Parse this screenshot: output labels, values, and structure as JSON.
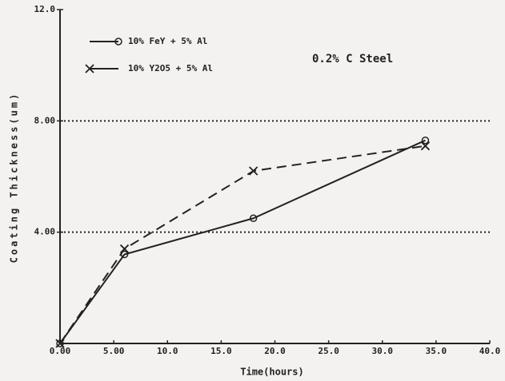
{
  "chart_data": {
    "type": "line",
    "annotation": "0.2% C Steel",
    "x_label": "Time(hours)",
    "y_label": "Coating Thickness(um)",
    "xlim": [
      0,
      40
    ],
    "xticks": [
      {
        "value": 0,
        "label": "0.00"
      },
      {
        "value": 5,
        "label": "5.00"
      },
      {
        "value": 10,
        "label": "10.0"
      },
      {
        "value": 15,
        "label": "15.0"
      },
      {
        "value": 20,
        "label": "20.0"
      },
      {
        "value": 25,
        "label": "25.0"
      },
      {
        "value": 30,
        "label": "30.0"
      },
      {
        "value": 35,
        "label": "35.0"
      },
      {
        "value": 40,
        "label": "40.0"
      }
    ],
    "ylim": [
      0,
      12
    ],
    "yticks": [
      {
        "value": 4,
        "label": "4.00"
      },
      {
        "value": 8,
        "label": "8.00"
      },
      {
        "value": 12,
        "label": "12.0"
      }
    ],
    "grid": true,
    "legend": "upper left",
    "series": [
      {
        "name": "10% FeY + 5% Al",
        "color": "#222222",
        "line_style": "solid",
        "marker": "circle",
        "x": [
          0,
          6,
          18,
          34
        ],
        "values": [
          0,
          3.2,
          4.5,
          7.3
        ]
      },
      {
        "name": "10% Y2O5 + 5% Al",
        "color": "#222222",
        "line_style": "dashed",
        "marker": "x",
        "x": [
          0,
          6,
          18,
          34
        ],
        "values": [
          0,
          3.4,
          6.2,
          7.1
        ]
      }
    ]
  }
}
